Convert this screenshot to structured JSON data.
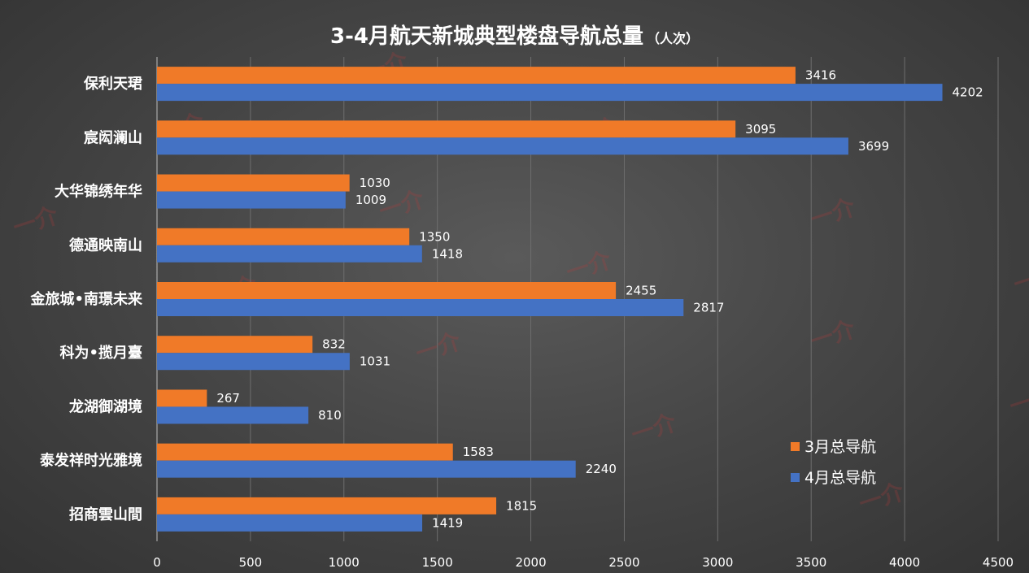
{
  "chart_data": {
    "type": "bar",
    "orientation": "horizontal",
    "title": "3-4月航天新城典型楼盘导航总量",
    "subtitle": "（人次）",
    "categories": [
      "保利天珺",
      "宸闳澜山",
      "大华锦绣年华",
      "德通映南山",
      "金旅城•南璟未来",
      "科为•揽月臺",
      "龙湖御湖境",
      "泰发祥时光雅境",
      "招商雲山間"
    ],
    "series": [
      {
        "name": "3月总导航",
        "color": "#f07a28",
        "values": [
          3416,
          3095,
          1030,
          1350,
          2455,
          832,
          267,
          1583,
          1815
        ]
      },
      {
        "name": "4月总导航",
        "color": "#4472c4",
        "values": [
          4202,
          3699,
          1009,
          1418,
          2817,
          1031,
          810,
          2240,
          1419
        ]
      }
    ],
    "xlim": [
      0,
      4500
    ],
    "xticks": [
      0,
      500,
      1000,
      1500,
      2000,
      2500,
      3000,
      3500,
      4000,
      4500
    ],
    "grid": true,
    "legend": "bottom-right",
    "data_labels": true
  },
  "watermark_text": "一介"
}
